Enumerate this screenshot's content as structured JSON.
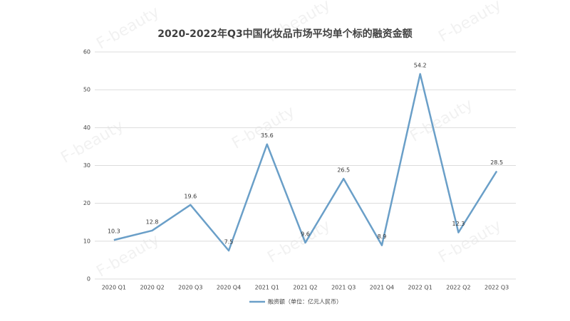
{
  "chart_data": {
    "type": "line",
    "title": "2020-2022年Q3中国化妆品市场平均单个标的融资金额",
    "watermark": "F-beauty",
    "categories": [
      "2020 Q1",
      "2020 Q2",
      "2020 Q3",
      "2020 Q4",
      "2021 Q1",
      "2021 Q2",
      "2021 Q3",
      "2021 Q4",
      "2022 Q1",
      "2022 Q2",
      "2022 Q3"
    ],
    "series": [
      {
        "name": "融资额（单位：亿元人民币）",
        "color": "#6a9fc8",
        "values": [
          10.3,
          12.8,
          19.6,
          7.5,
          35.6,
          9.6,
          26.5,
          8.9,
          54.2,
          12.3,
          28.5
        ]
      }
    ],
    "ylim": [
      0,
      60
    ],
    "yticks": [
      0,
      10,
      20,
      30,
      40,
      50,
      60
    ],
    "grid": true,
    "legend": "bottom"
  }
}
